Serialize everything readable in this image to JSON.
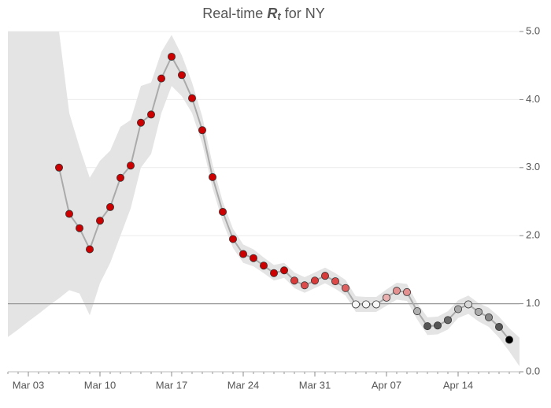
{
  "chart_data": {
    "type": "line",
    "title": {
      "prefix": "Real-time",
      "symbol": "R",
      "subscript": "t",
      "suffix": "for NY"
    },
    "categories": [
      null,
      null,
      "Mar 03",
      null,
      null,
      null,
      null,
      null,
      null,
      "Mar 10",
      null,
      null,
      null,
      null,
      null,
      null,
      "Mar 17",
      null,
      null,
      null,
      null,
      null,
      null,
      "Mar 24",
      null,
      null,
      null,
      null,
      null,
      null,
      "Mar 31",
      null,
      null,
      null,
      null,
      null,
      null,
      "Apr 07",
      null,
      null,
      null,
      null,
      null,
      null,
      "Apr 14",
      null,
      null,
      null,
      null,
      null,
      null
    ],
    "values": [
      null,
      null,
      null,
      null,
      null,
      3.0,
      2.32,
      2.11,
      1.8,
      2.22,
      2.42,
      2.85,
      3.03,
      3.66,
      3.78,
      4.31,
      4.63,
      4.36,
      4.02,
      3.55,
      2.86,
      2.35,
      1.95,
      1.73,
      1.67,
      1.56,
      1.45,
      1.49,
      1.34,
      1.27,
      1.34,
      1.41,
      1.33,
      1.23,
      0.99,
      0.99,
      0.99,
      1.09,
      1.19,
      1.17,
      0.89,
      0.67,
      0.68,
      0.76,
      0.92,
      0.99,
      0.88,
      0.8,
      0.66,
      0.47,
      null
    ],
    "colors": [
      null,
      null,
      null,
      null,
      null,
      "#cc0000",
      "#cc0000",
      "#cc0000",
      "#cc0000",
      "#cc0000",
      "#cc0000",
      "#cc0000",
      "#cc0000",
      "#cc0000",
      "#cc0000",
      "#cc0000",
      "#cc0000",
      "#cc0000",
      "#cc0000",
      "#cc0000",
      "#cc0000",
      "#cc0000",
      "#cc0000",
      "#cc0000",
      "#cc0000",
      "#cc0000",
      "#cc0000",
      "#cc0000",
      "#d93a3a",
      "#dc4a4a",
      "#d93a3a",
      "#d93a3a",
      "#dc4a4a",
      "#e06060",
      "#f7f7f7",
      "#f7f7f7",
      "#f7f7f7",
      "#eab0b0",
      "#e49090",
      "#e49090",
      "#b0b0b0",
      "#555555",
      "#555555",
      "#6a6a6a",
      "#a8a8a8",
      "#d8d8d8",
      "#aaaaaa",
      "#888888",
      "#555555",
      "#000000",
      null
    ],
    "upper": [
      5.0,
      5.0,
      5.0,
      5.0,
      5.0,
      5.0,
      3.8,
      3.3,
      2.85,
      3.1,
      3.25,
      3.6,
      3.7,
      4.2,
      4.25,
      4.7,
      4.95,
      4.65,
      4.25,
      3.75,
      3.05,
      2.5,
      2.1,
      1.87,
      1.8,
      1.68,
      1.57,
      1.6,
      1.46,
      1.39,
      1.46,
      1.53,
      1.45,
      1.35,
      1.11,
      1.1,
      1.1,
      1.21,
      1.31,
      1.29,
      1.01,
      0.8,
      0.81,
      0.89,
      1.05,
      1.12,
      1.01,
      0.94,
      0.81,
      0.64,
      0.5
    ],
    "lower": [
      0.51,
      0.62,
      0.74,
      0.85,
      0.97,
      1.08,
      1.2,
      1.15,
      0.83,
      1.3,
      1.6,
      2.0,
      2.4,
      3.0,
      3.2,
      3.8,
      4.2,
      4.05,
      3.8,
      3.35,
      2.7,
      2.2,
      1.82,
      1.6,
      1.55,
      1.45,
      1.34,
      1.38,
      1.23,
      1.16,
      1.23,
      1.3,
      1.22,
      1.12,
      0.88,
      0.88,
      0.88,
      0.97,
      1.06,
      1.04,
      0.77,
      0.54,
      0.55,
      0.62,
      0.79,
      0.85,
      0.74,
      0.66,
      0.5,
      0.3,
      0.08
    ],
    "ylim": [
      0,
      5
    ],
    "yticks": [
      {
        "value": 0,
        "label": "0.0"
      },
      {
        "value": 1,
        "label": "1.0"
      },
      {
        "value": 2,
        "label": "2.0"
      },
      {
        "value": 3,
        "label": "3.0"
      },
      {
        "value": 4,
        "label": "4.0"
      },
      {
        "value": 5,
        "label": "5.0"
      }
    ],
    "reference_line": 1,
    "grid": true,
    "band_color": "#e4e4e4",
    "line_color": "#aaaaaa"
  }
}
